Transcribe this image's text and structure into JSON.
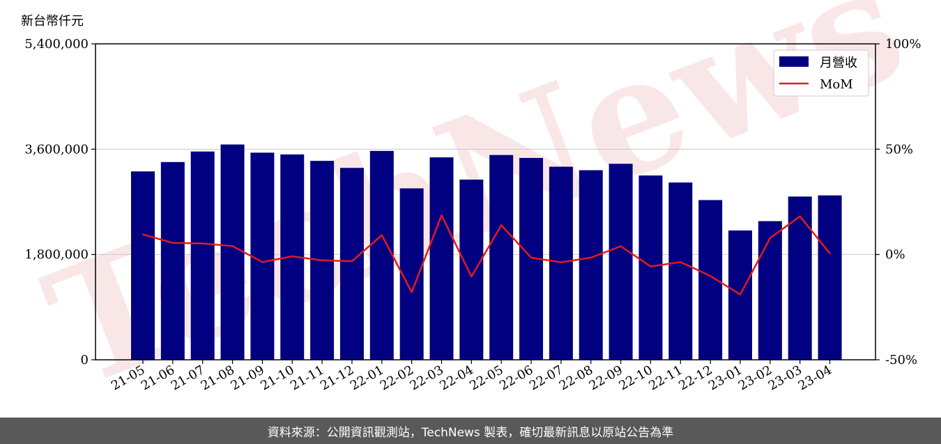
{
  "chart_data": {
    "type": "bar",
    "unit_label": "新台幣仟元",
    "categories": [
      "21-05",
      "21-06",
      "21-07",
      "21-08",
      "21-09",
      "21-10",
      "21-11",
      "21-12",
      "22-01",
      "22-02",
      "22-03",
      "22-04",
      "22-05",
      "22-06",
      "22-07",
      "22-08",
      "22-09",
      "22-10",
      "22-11",
      "22-12",
      "23-01",
      "23-02",
      "23-03",
      "23-04"
    ],
    "series": [
      {
        "name": "月營收",
        "axis": "left",
        "type": "bar",
        "color": "#000080",
        "values": [
          3220000,
          3380000,
          3560000,
          3680000,
          3540000,
          3510000,
          3400000,
          3280000,
          3570000,
          2930000,
          3460000,
          3080000,
          3500000,
          3450000,
          3300000,
          3240000,
          3350000,
          3150000,
          3030000,
          2730000,
          2210000,
          2370000,
          2790000,
          2810000
        ]
      },
      {
        "name": "MoM",
        "axis": "right",
        "type": "line",
        "color": "#e31a1c",
        "values": [
          9.5,
          5.5,
          5.2,
          4.0,
          -3.6,
          -0.9,
          -2.8,
          -3.2,
          9.2,
          -17.9,
          18.6,
          -10.5,
          13.9,
          -1.5,
          -3.7,
          -1.5,
          3.9,
          -5.7,
          -3.6,
          -10.2,
          -19.0,
          7.8,
          18.1,
          0.5
        ]
      }
    ],
    "left_axis": {
      "ylim": [
        0,
        5400000
      ],
      "ticks": [
        "0",
        "1,800,000",
        "3,600,000",
        "5,400,000"
      ]
    },
    "right_axis": {
      "ylim": [
        -50,
        100
      ],
      "ticks": [
        "-50%",
        "0%",
        "50%",
        "100%"
      ]
    },
    "grid": "horizontal",
    "legend_position": "top-right",
    "watermark": "TechNews"
  },
  "footer_text": "資料來源：公開資訊觀測站，TechNews 製表，確切最新訊息以原站公告為準"
}
